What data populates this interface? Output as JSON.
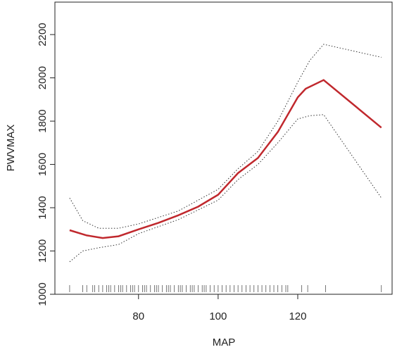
{
  "chart_data": {
    "type": "line",
    "x_label": "MAP",
    "y_label": "PWVMAX",
    "xlim": [
      59,
      143.7
    ],
    "ylim": [
      1000,
      2350
    ],
    "xticks": [
      80,
      100,
      120
    ],
    "yticks": [
      1000,
      1200,
      1400,
      1600,
      1800,
      2000,
      2200
    ],
    "series": [
      {
        "color": "#c0282d",
        "style": "solid",
        "x": [
          62.7,
          67,
          71,
          75,
          80,
          85,
          90,
          95,
          100,
          105,
          110,
          115,
          120,
          122,
          126.5,
          141
        ],
        "values": [
          1296,
          1272,
          1260,
          1268,
          1300,
          1330,
          1365,
          1405,
          1460,
          1560,
          1630,
          1750,
          1910,
          1950,
          1990,
          1770
        ]
      },
      {
        "color": "#333333",
        "style": "dotted",
        "x": [
          62.7,
          66,
          70,
          75,
          80,
          90,
          100,
          105,
          110,
          115,
          120,
          123,
          126.5,
          141
        ],
        "values": [
          1445,
          1340,
          1305,
          1305,
          1325,
          1385,
          1485,
          1580,
          1660,
          1800,
          1980,
          2080,
          2155,
          2095
        ]
      },
      {
        "color": "#333333",
        "style": "dotted",
        "x": [
          62.7,
          66,
          70,
          75,
          80,
          90,
          100,
          105,
          110,
          115,
          120,
          123,
          126.5,
          141
        ],
        "values": [
          1150,
          1200,
          1215,
          1230,
          1280,
          1345,
          1435,
          1530,
          1600,
          1700,
          1810,
          1825,
          1830,
          1445
        ]
      }
    ],
    "rug": [
      62.7,
      66,
      67,
      68.5,
      69,
      70,
      71,
      72,
      72.5,
      73,
      74,
      75,
      75.5,
      76,
      77,
      78,
      78.5,
      79,
      80,
      81,
      81.5,
      82,
      83,
      84,
      84.5,
      85,
      86,
      87,
      87.5,
      88,
      89,
      90,
      90.5,
      91,
      92,
      93,
      93.5,
      94,
      95,
      96,
      96.5,
      97,
      98,
      99,
      100,
      101,
      102,
      103,
      104,
      105,
      106,
      107,
      108,
      109,
      110,
      111,
      112,
      113,
      114,
      115,
      116,
      117,
      117.5,
      121,
      122.5,
      127,
      141
    ]
  }
}
